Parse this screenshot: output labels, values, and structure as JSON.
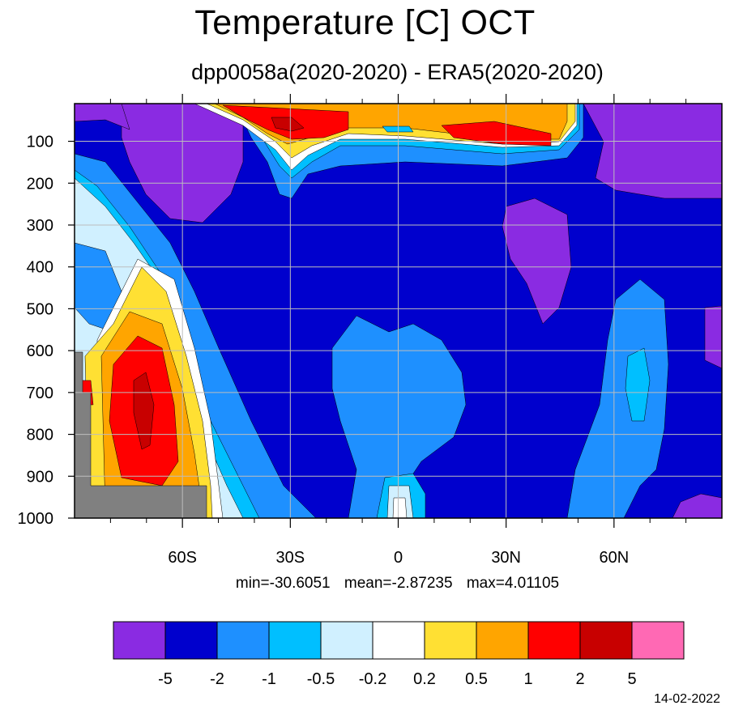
{
  "chart_data": {
    "type": "heatmap",
    "title": "Temperature [C] OCT",
    "subtitle": "dpp0058a(2020-2020) - ERA5(2020-2020)",
    "x_ticks": [
      "60S",
      "30S",
      "0",
      "30N",
      "60N"
    ],
    "x_tick_values": [
      -60,
      -30,
      0,
      30,
      60
    ],
    "xlim": [
      -90,
      90
    ],
    "y_ticks": [
      "100",
      "200",
      "300",
      "400",
      "500",
      "600",
      "700",
      "800",
      "900",
      "1000"
    ],
    "y_tick_values": [
      100,
      200,
      300,
      400,
      500,
      600,
      700,
      800,
      900,
      1000
    ],
    "ylim": [
      1000,
      10
    ],
    "grid": true,
    "stats": {
      "min": "min=-30.6051",
      "mean": "mean=-2.87235",
      "max": "max=4.01105"
    },
    "colorbar": {
      "levels": [
        "-5",
        "-2",
        "-1",
        "-0.5",
        "-0.2",
        "0.2",
        "0.5",
        "1",
        "2",
        "5"
      ],
      "colors": [
        "#8a2be2",
        "#0000cd",
        "#1e90ff",
        "#00bfff",
        "#d0f0ff",
        "#ffffff",
        "#ffe033",
        "#ffa500",
        "#ff0000",
        "#c80000",
        "#ff69b4"
      ]
    },
    "missing_color": "#808080"
  },
  "date": "14-02-2022"
}
